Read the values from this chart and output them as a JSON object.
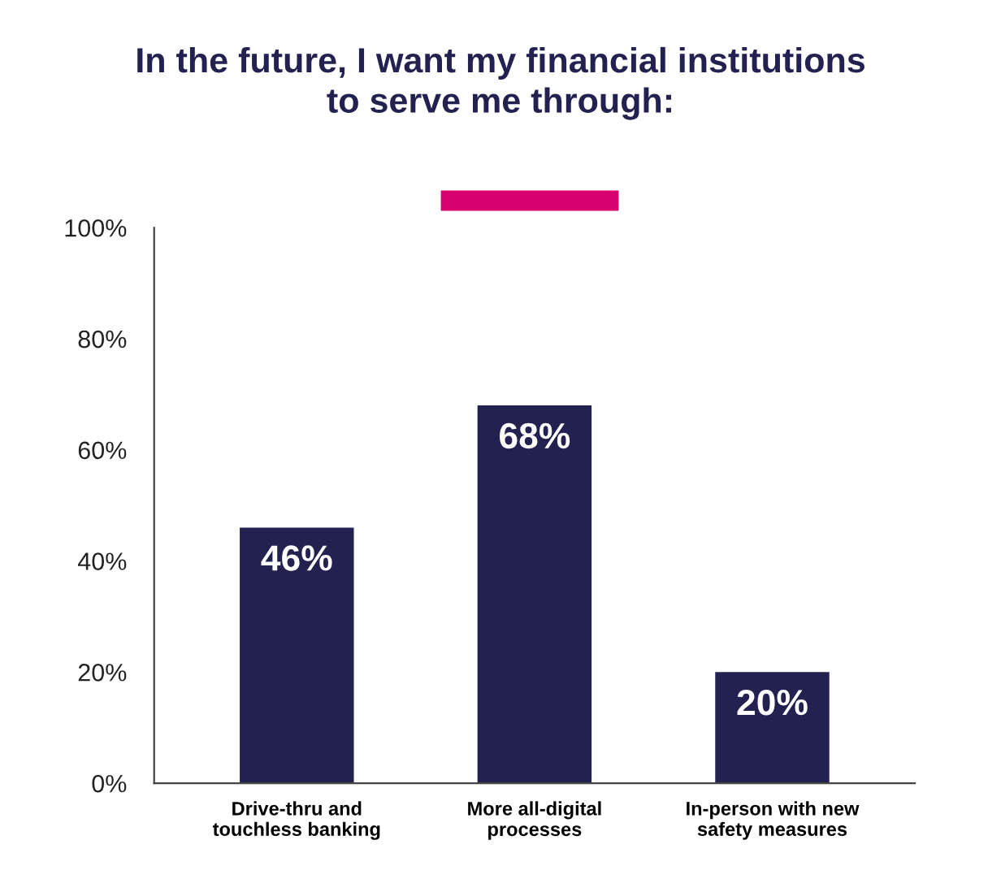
{
  "chart_data": {
    "type": "bar",
    "title": "In the future, I want my financial institutions\nto serve me through:",
    "categories": [
      "Drive-thru and\ntouchless banking",
      "More all-digital\nprocesses",
      "In-person with new\nsafety measures"
    ],
    "values": [
      46,
      68,
      20
    ],
    "color": "#23214f",
    "value_labels": [
      "46%",
      "68%",
      "20%"
    ],
    "ylim": [
      0,
      100
    ],
    "yticks": [
      {
        "value": 0,
        "label": "0%"
      },
      {
        "value": 20,
        "label": "20%"
      },
      {
        "value": 40,
        "label": "40%"
      },
      {
        "value": 60,
        "label": "60%"
      },
      {
        "value": 80,
        "label": "80%"
      },
      {
        "value": 100,
        "label": "100%"
      }
    ],
    "grid": false
  }
}
